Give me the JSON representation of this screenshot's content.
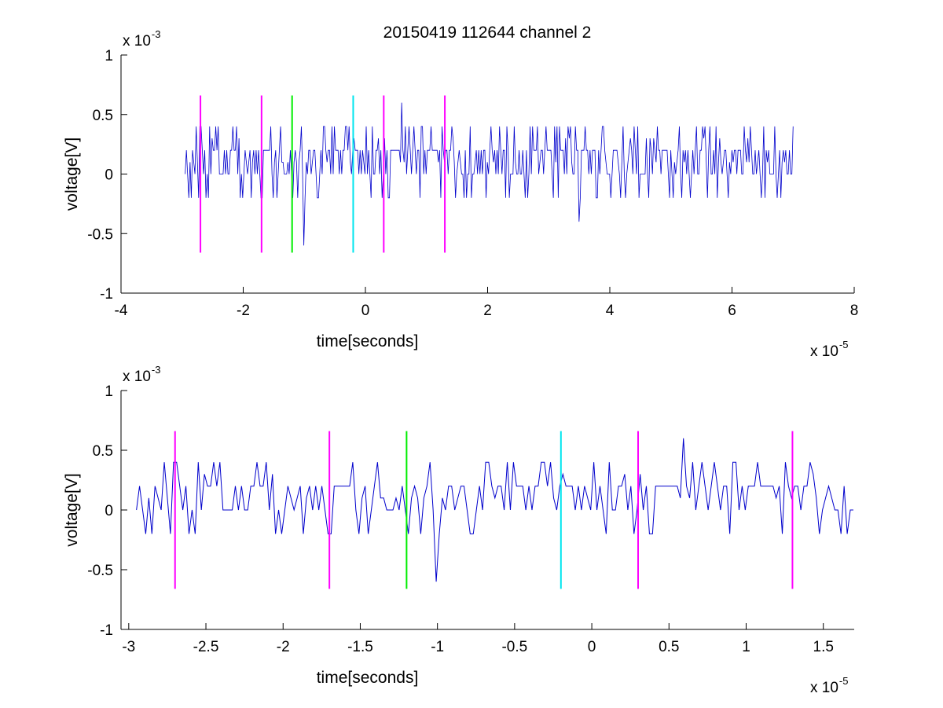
{
  "figure": {
    "title": "20150419 112644 channel 2"
  },
  "chart_data": [
    {
      "type": "line",
      "title": "20150419 112644 channel 2",
      "xlabel": "time[seconds]",
      "ylabel": "voltage[V]",
      "x_multiplier": "x 10",
      "x_exponent": "-5",
      "y_multiplier": "x 10",
      "y_exponent": "-3",
      "xlim": [
        -4,
        8
      ],
      "ylim": [
        -1,
        1
      ],
      "x_ticks": [
        -4,
        -2,
        0,
        2,
        4,
        6,
        8
      ],
      "x_tick_labels": [
        "-4",
        "-2",
        "0",
        "2",
        "4",
        "6",
        "8"
      ],
      "y_ticks": [
        -1,
        -0.5,
        0,
        0.5,
        1
      ],
      "y_tick_labels": [
        "-1",
        "-0.5",
        "0",
        "0.5",
        "1"
      ],
      "grid": false,
      "series": [
        {
          "color": "#0000cc",
          "x_range": [
            -2.95,
            7.0
          ],
          "levels": [
            0.2,
            0,
            0.2,
            0.4,
            -0.2,
            0.6,
            -0.4,
            -0.6
          ]
        }
      ],
      "markers": [
        {
          "x": -2.7,
          "y_range": [
            -0.66,
            0.66
          ],
          "color": "#ff00ff"
        },
        {
          "x": -1.7,
          "y_range": [
            -0.66,
            0.66
          ],
          "color": "#ff00ff"
        },
        {
          "x": -1.2,
          "y_range": [
            -0.66,
            0.66
          ],
          "color": "#00ee00"
        },
        {
          "x": -0.2,
          "y_range": [
            -0.66,
            0.66
          ],
          "color": "#00e5ee"
        },
        {
          "x": 0.3,
          "y_range": [
            -0.66,
            0.66
          ],
          "color": "#ff00ff"
        },
        {
          "x": 1.3,
          "y_range": [
            -0.66,
            0.66
          ],
          "color": "#ff00ff"
        }
      ]
    },
    {
      "type": "line",
      "xlabel": "time[seconds]",
      "ylabel": "voltage[V]",
      "x_multiplier": "x 10",
      "x_exponent": "-5",
      "y_multiplier": "x 10",
      "y_exponent": "-3",
      "xlim": [
        -3.05,
        1.7
      ],
      "ylim": [
        -1,
        1
      ],
      "x_ticks": [
        -3,
        -2.5,
        -2,
        -1.5,
        -1,
        -0.5,
        0,
        0.5,
        1,
        1.5
      ],
      "x_tick_labels": [
        "-3",
        "-2.5",
        "-2",
        "-1.5",
        "-1",
        "-0.5",
        "0",
        "0.5",
        "1",
        "1.5"
      ],
      "y_ticks": [
        -1,
        -0.5,
        0,
        0.5,
        1
      ],
      "y_tick_labels": [
        "-1",
        "-0.5",
        "0",
        "0.5",
        "1"
      ],
      "grid": false,
      "series": [
        {
          "color": "#0000cc",
          "x_range": [
            -2.95,
            1.7
          ],
          "levels": [
            0.2,
            0,
            0.2,
            0.4,
            -0.2,
            0.6,
            -0.4,
            -0.6
          ]
        }
      ],
      "markers": [
        {
          "x": -2.7,
          "y_range": [
            -0.66,
            0.66
          ],
          "color": "#ff00ff"
        },
        {
          "x": -1.7,
          "y_range": [
            -0.66,
            0.66
          ],
          "color": "#ff00ff"
        },
        {
          "x": -1.2,
          "y_range": [
            -0.66,
            0.66
          ],
          "color": "#00ee00"
        },
        {
          "x": -0.2,
          "y_range": [
            -0.66,
            0.66
          ],
          "color": "#00e5ee"
        },
        {
          "x": 0.3,
          "y_range": [
            -0.66,
            0.66
          ],
          "color": "#ff00ff"
        },
        {
          "x": 1.3,
          "y_range": [
            -0.66,
            0.66
          ],
          "color": "#ff00ff"
        }
      ]
    }
  ]
}
